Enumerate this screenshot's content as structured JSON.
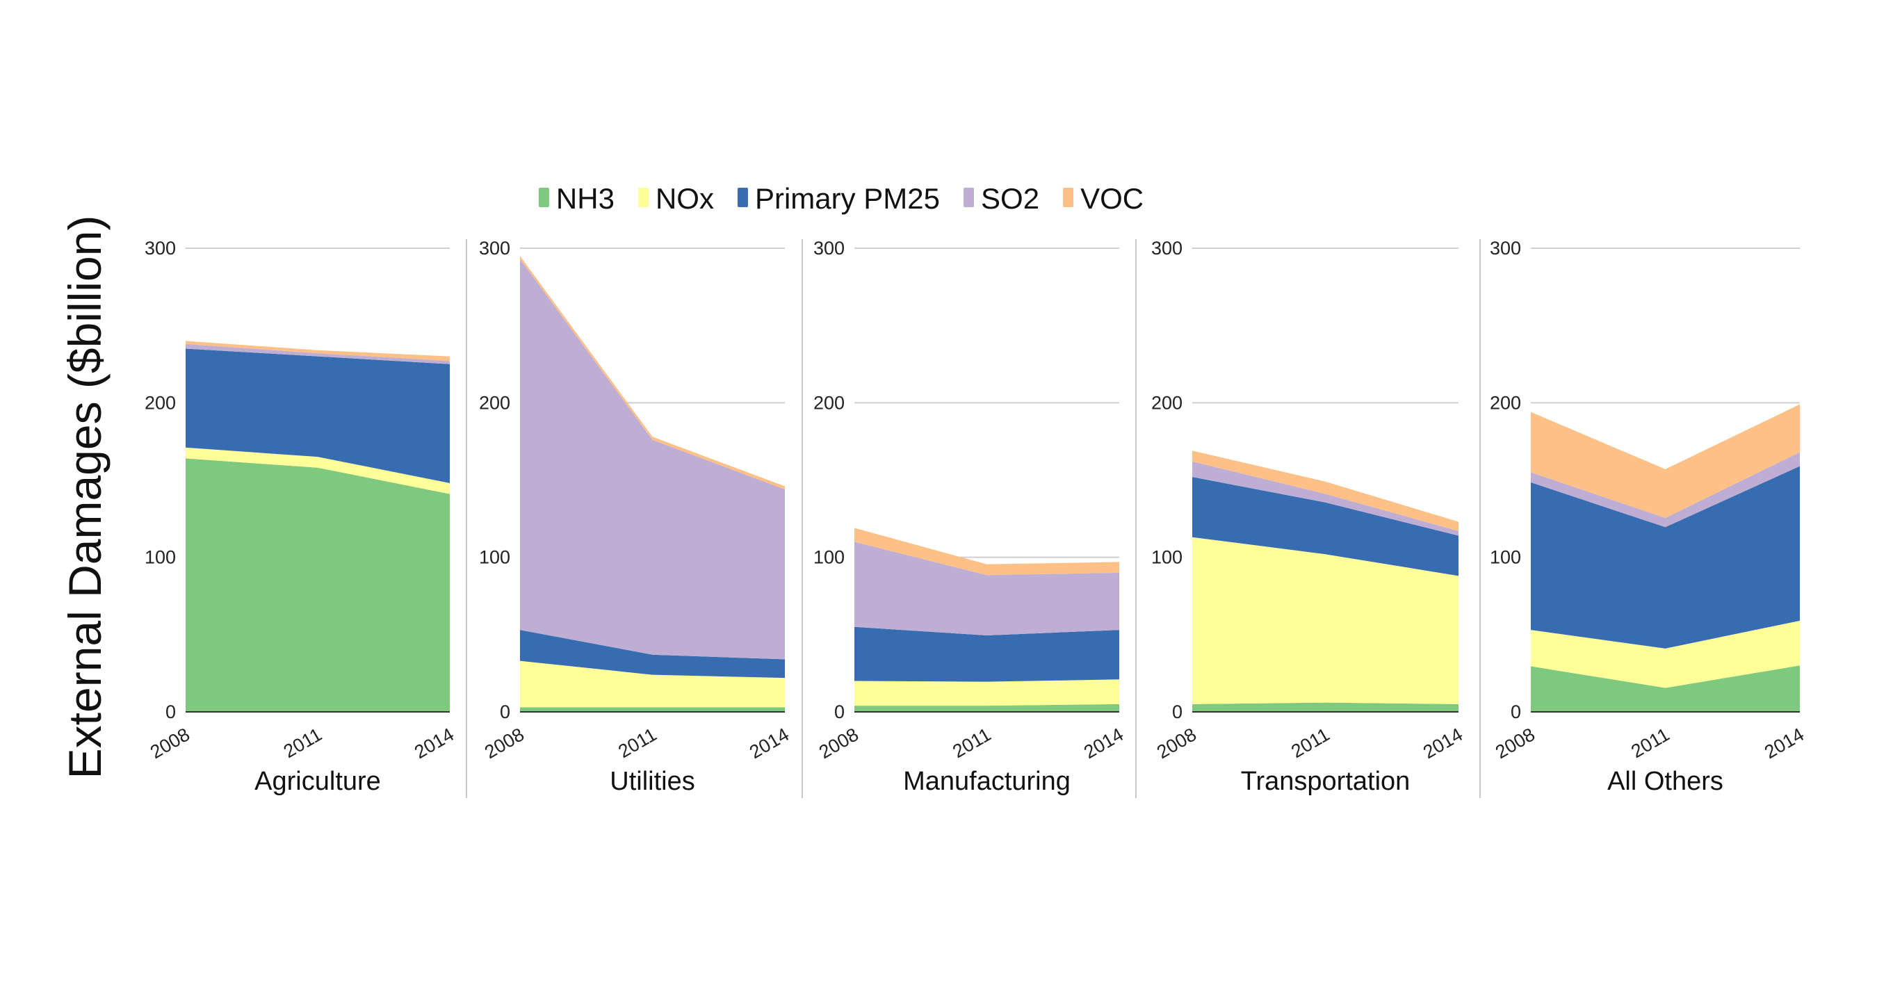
{
  "chart_data": {
    "type": "area",
    "stacked": true,
    "ylabel": "External Damages ($billion)",
    "ylim": [
      0,
      300
    ],
    "yticks": [
      0,
      100,
      200,
      300
    ],
    "grid": true,
    "legend_placement": "top",
    "x": [
      "2008",
      "2011",
      "2014"
    ],
    "series_names": [
      "NH3",
      "NOx",
      "Primary PM25",
      "SO2",
      "VOC"
    ],
    "colors": {
      "NH3": "#7fc97f",
      "NOx": "#ffff99",
      "Primary PM25": "#386cb0",
      "SO2": "#beaed4",
      "VOC": "#fdc086"
    },
    "panels": [
      {
        "title": "Agriculture",
        "series": [
          {
            "name": "NH3",
            "values": [
              164,
              158,
              141
            ]
          },
          {
            "name": "NOx",
            "values": [
              7,
              7,
              7
            ]
          },
          {
            "name": "Primary PM25",
            "values": [
              64,
              65,
              77
            ]
          },
          {
            "name": "SO2",
            "values": [
              3,
              2,
              2
            ]
          },
          {
            "name": "VOC",
            "values": [
              2,
              2,
              3
            ]
          }
        ]
      },
      {
        "title": "Utilities",
        "series": [
          {
            "name": "NH3",
            "values": [
              3,
              3,
              3
            ]
          },
          {
            "name": "NOx",
            "values": [
              30,
              21,
              19
            ]
          },
          {
            "name": "Primary PM25",
            "values": [
              20,
              13,
              12
            ]
          },
          {
            "name": "SO2",
            "values": [
              240,
              139,
              110
            ]
          },
          {
            "name": "VOC",
            "values": [
              2,
              2,
              2
            ]
          }
        ]
      },
      {
        "title": "Manufacturing",
        "series": [
          {
            "name": "NH3",
            "values": [
              4,
              4,
              5
            ]
          },
          {
            "name": "NOx",
            "values": [
              16,
              15.5,
              16
            ]
          },
          {
            "name": "Primary PM25",
            "values": [
              35,
              30,
              32
            ]
          },
          {
            "name": "SO2",
            "values": [
              55,
              39,
              37
            ]
          },
          {
            "name": "VOC",
            "values": [
              9,
              7,
              7
            ]
          }
        ]
      },
      {
        "title": "Transportation",
        "series": [
          {
            "name": "NH3",
            "values": [
              5,
              6,
              5
            ]
          },
          {
            "name": "NOx",
            "values": [
              108,
              96,
              83
            ]
          },
          {
            "name": "Primary PM25",
            "values": [
              39,
              33.5,
              26
            ]
          },
          {
            "name": "SO2",
            "values": [
              10,
              5.5,
              3
            ]
          },
          {
            "name": "VOC",
            "values": [
              7,
              8,
              6
            ]
          }
        ]
      },
      {
        "title": "All Others",
        "series": [
          {
            "name": "NH3",
            "values": [
              29.5,
              15.5,
              30
            ]
          },
          {
            "name": "NOx",
            "values": [
              23.5,
              25.5,
              29
            ]
          },
          {
            "name": "Primary PM25",
            "values": [
              95.5,
              78.5,
              100
            ]
          },
          {
            "name": "SO2",
            "values": [
              6.5,
              6,
              9
            ]
          },
          {
            "name": "VOC",
            "values": [
              39,
              31.5,
              31
            ]
          }
        ]
      }
    ]
  }
}
